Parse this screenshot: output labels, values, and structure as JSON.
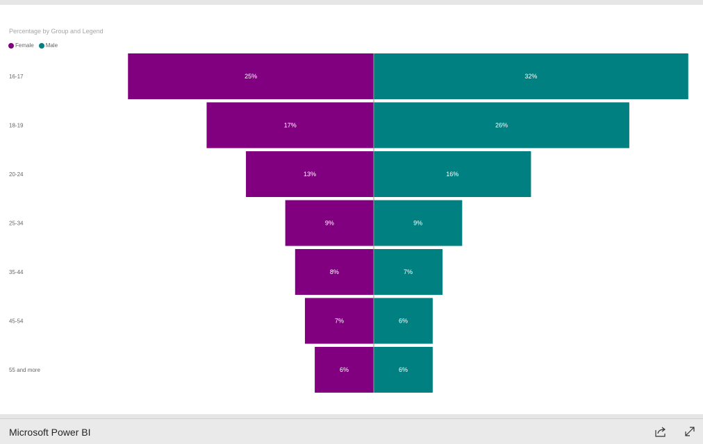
{
  "colors": {
    "female": "#800080",
    "male": "#008080",
    "divider": "#9a9a9a"
  },
  "chart_data": {
    "type": "bar",
    "title": "Percentage by Group and Legend",
    "legend": {
      "placement": "top-left",
      "entries": [
        "Female",
        "Male"
      ]
    },
    "categories": [
      "16-17",
      "18-19",
      "20-24",
      "25-34",
      "35-44",
      "45-54",
      "55 and more"
    ],
    "series": [
      {
        "name": "Female",
        "color": "#800080",
        "values": [
          25,
          17,
          13,
          9,
          8,
          7,
          6
        ],
        "labels": [
          "25%",
          "17%",
          "13%",
          "9%",
          "8%",
          "7%",
          "6%"
        ]
      },
      {
        "name": "Male",
        "color": "#008080",
        "values": [
          32,
          26,
          16,
          9,
          7,
          6,
          6
        ],
        "labels": [
          "32%",
          "26%",
          "16%",
          "9%",
          "7%",
          "6%",
          "6%"
        ]
      }
    ],
    "value_unit": "%",
    "grid": false
  },
  "footer": {
    "brand": "Microsoft Power BI",
    "icons": [
      "share-icon",
      "fullscreen-icon"
    ]
  }
}
